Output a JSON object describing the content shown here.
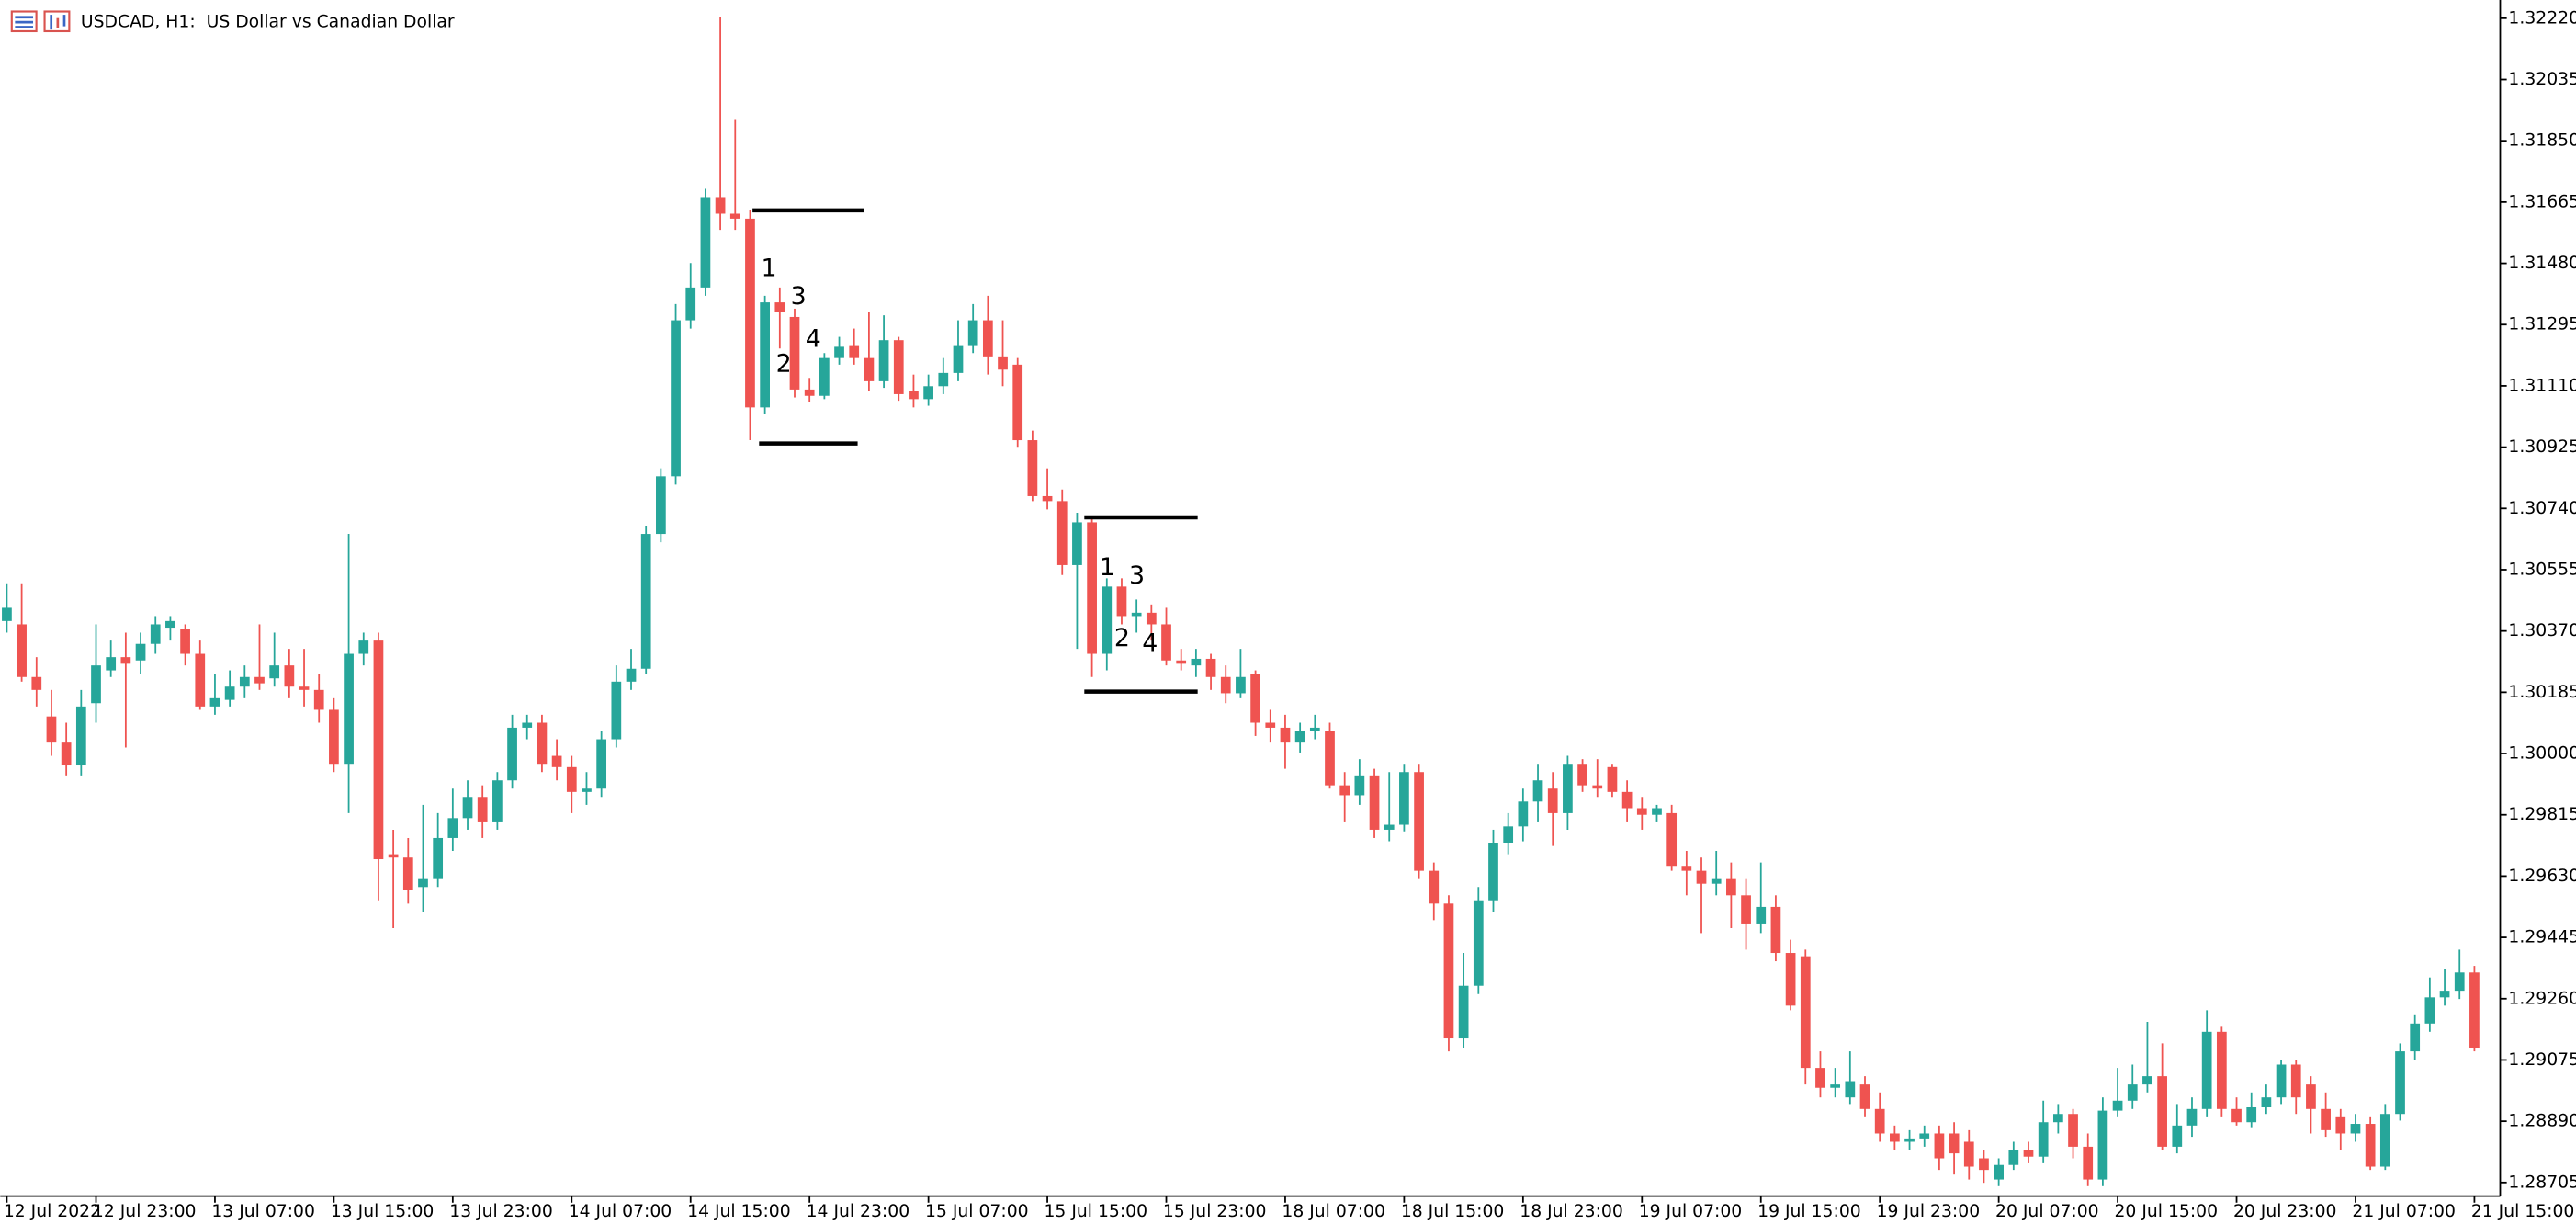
{
  "chart_data": {
    "type": "candlestick",
    "title": "USDCAD, H1:  US Dollar vs Canadian Dollar",
    "up_color": "#26a69a",
    "down_color": "#ef5350",
    "ylim": [
      1.28664,
      1.32275
    ],
    "yticks": [
      {
        "value": 1.3222,
        "label": "1.32220"
      },
      1.32035,
      {
        "value": 1.3185,
        "label": "1.31850"
      },
      1.31665,
      {
        "value": 1.3148,
        "label": "1.31480"
      },
      1.31295,
      {
        "value": 1.3111,
        "label": "1.31110"
      },
      1.30925,
      {
        "value": 1.3074,
        "label": "1.30740"
      },
      1.30555,
      {
        "value": 1.3037,
        "label": "1.30370"
      },
      1.30185,
      {
        "value": 1.3,
        "label": "1.30000"
      },
      1.29815,
      {
        "value": 1.2963,
        "label": "1.29630"
      },
      1.29445,
      {
        "value": 1.2926,
        "label": "1.29260"
      },
      1.29075,
      {
        "value": 1.2889,
        "label": "1.28890"
      },
      1.28705
    ],
    "categories": [
      "12 Jul 2022",
      null,
      null,
      null,
      null,
      null,
      "12 Jul 23:00",
      null,
      null,
      null,
      null,
      null,
      null,
      null,
      "13 Jul 07:00",
      null,
      null,
      null,
      null,
      null,
      null,
      null,
      "13 Jul 15:00",
      null,
      null,
      null,
      null,
      null,
      null,
      null,
      "13 Jul 23:00",
      null,
      null,
      null,
      null,
      null,
      null,
      null,
      "14 Jul 07:00",
      null,
      null,
      null,
      null,
      null,
      null,
      null,
      "14 Jul 15:00",
      null,
      null,
      null,
      null,
      null,
      null,
      null,
      "14 Jul 23:00",
      null,
      null,
      null,
      null,
      null,
      null,
      null,
      "15 Jul 07:00",
      null,
      null,
      null,
      null,
      null,
      null,
      null,
      "15 Jul 15:00",
      null,
      null,
      null,
      null,
      null,
      null,
      null,
      "15 Jul 23:00",
      null,
      null,
      null,
      null,
      null,
      null,
      null,
      "18 Jul 07:00",
      null,
      null,
      null,
      null,
      null,
      null,
      null,
      "18 Jul 15:00",
      null,
      null,
      null,
      null,
      null,
      null,
      null,
      "18 Jul 23:00",
      null,
      null,
      null,
      null,
      null,
      null,
      null,
      "19 Jul 07:00",
      null,
      null,
      null,
      null,
      null,
      null,
      null,
      "19 Jul 15:00",
      null,
      null,
      null,
      null,
      null,
      null,
      null,
      "19 Jul 23:00",
      null,
      null,
      null,
      null,
      null,
      null,
      null,
      "20 Jul 07:00",
      null,
      null,
      null,
      null,
      null,
      null,
      null,
      "20 Jul 15:00",
      null,
      null,
      null,
      null,
      null,
      null,
      null,
      "20 Jul 23:00",
      null,
      null,
      null,
      null,
      null,
      null,
      null,
      "21 Jul 07:00",
      null,
      null,
      null,
      null,
      null,
      null,
      null,
      "21 Jul 15:00"
    ],
    "open": [
      1.304,
      1.3039,
      1.30231,
      1.30112,
      1.30033,
      1.29964,
      1.30152,
      1.30251,
      1.30291,
      1.30281,
      1.30331,
      1.3038,
      1.30375,
      1.30301,
      1.30142,
      1.30162,
      1.30202,
      1.30231,
      1.30227,
      1.30266,
      1.30202,
      1.30192,
      1.30132,
      1.29969,
      1.30301,
      1.30341,
      1.29696,
      1.29686,
      1.29597,
      1.29621,
      1.29745,
      1.29805,
      1.29869,
      1.29795,
      1.29919,
      1.30078,
      1.30093,
      1.29993,
      1.29959,
      1.29884,
      1.29894,
      1.30043,
      1.30217,
      1.30256,
      1.30663,
      1.30837,
      1.31308,
      1.31407,
      1.3168,
      1.3163,
      1.31615,
      1.31045,
      1.31362,
      1.31318,
      1.31099,
      1.3108,
      1.31194,
      1.31233,
      1.31194,
      1.31124,
      1.31248,
      1.31095,
      1.3107,
      1.31109,
      1.31149,
      1.31233,
      1.31308,
      1.31199,
      1.31174,
      1.30946,
      1.30777,
      1.30762,
      1.30569,
      1.30698,
      1.30301,
      1.30504,
      1.30415,
      1.30425,
      1.3039,
      1.30281,
      1.30266,
      1.30286,
      1.30231,
      1.30182,
      1.30241,
      1.30093,
      1.30078,
      1.30033,
      1.30068,
      1.30068,
      1.29904,
      1.29874,
      1.29934,
      1.2977,
      1.29785,
      1.29944,
      1.29646,
      1.29547,
      1.2914,
      1.29299,
      1.29557,
      1.29731,
      1.2978,
      1.29855,
      1.29894,
      1.2982,
      1.29969,
      1.29904,
      1.29959,
      1.29884,
      1.29835,
      1.29815,
      1.2982,
      1.29661,
      1.29646,
      1.29607,
      1.29621,
      1.29572,
      1.29487,
      1.29537,
      1.29398,
      1.29388,
      1.29051,
      1.28991,
      1.28962,
      1.29001,
      1.28927,
      1.28853,
      1.28828,
      1.28838,
      1.28853,
      1.28853,
      1.28828,
      1.28778,
      1.28714,
      1.28758,
      1.28803,
      1.28783,
      1.28887,
      1.28912,
      1.28813,
      1.28714,
      1.28922,
      1.28952,
      1.29001,
      1.29026,
      1.28813,
      1.28877,
      1.28927,
      1.2916,
      1.28927,
      1.28887,
      1.28932,
      1.28962,
      1.29061,
      1.29001,
      1.28927,
      1.28902,
      1.28853,
      1.28882,
      1.28753,
      1.28912,
      1.29101,
      1.29185,
      1.29264,
      1.29284,
      1.29339
    ],
    "high": [
      1.30514,
      1.30514,
      1.30291,
      1.30192,
      1.30093,
      1.30192,
      1.3039,
      1.30341,
      1.30365,
      1.30365,
      1.30415,
      1.30415,
      1.3039,
      1.30341,
      1.30241,
      1.30251,
      1.30266,
      1.3039,
      1.30365,
      1.30316,
      1.30316,
      1.30241,
      1.30167,
      1.30663,
      1.30365,
      1.30365,
      1.2977,
      1.29745,
      1.29845,
      1.2982,
      1.29894,
      1.29919,
      1.29904,
      1.29944,
      1.30117,
      1.30117,
      1.30117,
      1.30043,
      1.29993,
      1.29944,
      1.30068,
      1.30266,
      1.30316,
      1.30688,
      1.30861,
      1.31357,
      1.31481,
      1.31705,
      1.32225,
      1.31913,
      1.3164,
      1.31382,
      1.31407,
      1.31343,
      1.31134,
      1.31209,
      1.31258,
      1.31283,
      1.31333,
      1.31323,
      1.31258,
      1.31144,
      1.31144,
      1.31194,
      1.31308,
      1.31357,
      1.31382,
      1.31308,
      1.31194,
      1.30975,
      1.30861,
      1.30797,
      1.30727,
      1.30708,
      1.30529,
      1.30529,
      1.30465,
      1.3045,
      1.3044,
      1.30316,
      1.30316,
      1.30301,
      1.30266,
      1.30316,
      1.30251,
      1.30132,
      1.30117,
      1.30093,
      1.30117,
      1.30093,
      1.29944,
      1.29983,
      1.29954,
      1.29944,
      1.29969,
      1.29969,
      1.29671,
      1.29572,
      1.29398,
      1.29597,
      1.2977,
      1.2982,
      1.29894,
      1.29969,
      1.29944,
      1.29993,
      1.29983,
      1.29983,
      1.29969,
      1.29919,
      1.29869,
      1.29845,
      1.29845,
      1.29706,
      1.29686,
      1.29706,
      1.29671,
      1.29621,
      1.29671,
      1.29572,
      1.29438,
      1.29408,
      1.29101,
      1.29051,
      1.29101,
      1.29026,
      1.28977,
      1.28877,
      1.28863,
      1.28877,
      1.28877,
      1.28887,
      1.28863,
      1.28803,
      1.28778,
      1.28828,
      1.28828,
      1.28952,
      1.28942,
      1.28927,
      1.28853,
      1.28962,
      1.29051,
      1.29061,
      1.2919,
      1.29125,
      1.28942,
      1.28962,
      1.29225,
      1.29175,
      1.28962,
      1.28977,
      1.29001,
      1.29076,
      1.29076,
      1.29026,
      1.28977,
      1.28927,
      1.28912,
      1.28902,
      1.28942,
      1.29125,
      1.2921,
      1.29324,
      1.29349,
      1.29408,
      1.29359
    ],
    "low": [
      1.30365,
      1.30217,
      1.30142,
      1.29993,
      1.29934,
      1.29934,
      1.30093,
      1.30231,
      1.30018,
      1.30241,
      1.30301,
      1.30341,
      1.30266,
      1.30132,
      1.30117,
      1.30142,
      1.30167,
      1.30192,
      1.30202,
      1.30167,
      1.30142,
      1.30093,
      1.29944,
      1.2982,
      1.30266,
      1.29557,
      1.29473,
      1.29547,
      1.29522,
      1.29597,
      1.29706,
      1.2977,
      1.29745,
      1.2977,
      1.29894,
      1.30043,
      1.29944,
      1.29919,
      1.2982,
      1.29845,
      1.29869,
      1.30018,
      1.30192,
      1.30241,
      1.30638,
      1.30812,
      1.31283,
      1.31382,
      1.31581,
      1.31581,
      1.30946,
      1.31025,
      1.31223,
      1.31075,
      1.3106,
      1.3107,
      1.31174,
      1.31174,
      1.31095,
      1.31104,
      1.31065,
      1.31045,
      1.3105,
      1.31085,
      1.31124,
      1.31209,
      1.31144,
      1.31109,
      1.30926,
      1.30762,
      1.30737,
      1.30539,
      1.30316,
      1.30231,
      1.30251,
      1.3039,
      1.30365,
      1.30341,
      1.30266,
      1.30251,
      1.30231,
      1.30192,
      1.30152,
      1.30167,
      1.30053,
      1.30033,
      1.29954,
      1.30003,
      1.30043,
      1.29894,
      1.29795,
      1.29845,
      1.29745,
      1.29735,
      1.29765,
      1.29621,
      1.29497,
      1.29101,
      1.29111,
      1.29274,
      1.29522,
      1.29696,
      1.29735,
      1.29795,
      1.29721,
      1.2977,
      1.29884,
      1.29869,
      1.29869,
      1.29795,
      1.2977,
      1.29795,
      1.29646,
      1.29572,
      1.29458,
      1.29572,
      1.29473,
      1.29408,
      1.29458,
      1.29373,
      1.29225,
      1.29001,
      1.28962,
      1.28962,
      1.28942,
      1.28902,
      1.28828,
      1.28803,
      1.28803,
      1.28813,
      1.28743,
      1.28729,
      1.28714,
      1.28704,
      1.28694,
      1.28743,
      1.28763,
      1.28763,
      1.28853,
      1.28778,
      1.28694,
      1.28694,
      1.28902,
      1.28927,
      1.28977,
      1.28803,
      1.28793,
      1.28843,
      1.28902,
      1.28902,
      1.28877,
      1.28872,
      1.28912,
      1.28942,
      1.28912,
      1.28853,
      1.28843,
      1.28803,
      1.28828,
      1.28743,
      1.28743,
      1.28892,
      1.29076,
      1.2916,
      1.29239,
      1.29259,
      1.29101
    ],
    "close": [
      1.3044,
      1.30231,
      1.30192,
      1.30033,
      1.29964,
      1.30142,
      1.30266,
      1.30291,
      1.30271,
      1.30331,
      1.3039,
      1.304,
      1.30301,
      1.30142,
      1.30167,
      1.30202,
      1.30231,
      1.30212,
      1.30266,
      1.30202,
      1.30192,
      1.30132,
      1.29969,
      1.30301,
      1.30341,
      1.29681,
      1.29686,
      1.29587,
      1.29621,
      1.29745,
      1.29805,
      1.29869,
      1.29795,
      1.29919,
      1.30078,
      1.30093,
      1.29969,
      1.29959,
      1.29884,
      1.29894,
      1.30043,
      1.30217,
      1.30256,
      1.30663,
      1.30837,
      1.31308,
      1.31407,
      1.3168,
      1.3163,
      1.31615,
      1.31045,
      1.31362,
      1.31333,
      1.31099,
      1.3108,
      1.31194,
      1.31228,
      1.31194,
      1.31124,
      1.31248,
      1.31085,
      1.3107,
      1.31109,
      1.31149,
      1.31233,
      1.31308,
      1.31199,
      1.31159,
      1.30946,
      1.30777,
      1.30762,
      1.30569,
      1.30698,
      1.30301,
      1.30504,
      1.30415,
      1.30425,
      1.3039,
      1.30281,
      1.30271,
      1.30286,
      1.30231,
      1.30182,
      1.30231,
      1.30093,
      1.30078,
      1.30033,
      1.30068,
      1.30078,
      1.29904,
      1.29874,
      1.29934,
      1.2977,
      1.29785,
      1.29944,
      1.29646,
      1.29547,
      1.2914,
      1.29299,
      1.29557,
      1.29731,
      1.2978,
      1.29855,
      1.29919,
      1.2982,
      1.29969,
      1.29904,
      1.29894,
      1.29884,
      1.29835,
      1.29815,
      1.29835,
      1.29661,
      1.29646,
      1.29607,
      1.29621,
      1.29572,
      1.29487,
      1.29537,
      1.29398,
      1.29239,
      1.29051,
      1.28991,
      1.29001,
      1.29011,
      1.28927,
      1.28853,
      1.28828,
      1.28838,
      1.28853,
      1.28778,
      1.28793,
      1.28753,
      1.28743,
      1.28758,
      1.28803,
      1.28783,
      1.28887,
      1.28912,
      1.28813,
      1.28714,
      1.28922,
      1.28952,
      1.29001,
      1.29026,
      1.28813,
      1.28877,
      1.28927,
      1.2916,
      1.28927,
      1.28887,
      1.28932,
      1.28962,
      1.29061,
      1.28962,
      1.28927,
      1.28863,
      1.28853,
      1.28882,
      1.28753,
      1.28912,
      1.29101,
      1.29185,
      1.29264,
      1.29284,
      1.29339,
      1.29111
    ],
    "levels": [
      1.3164,
      1.30936,
      1.30713,
      1.30187
    ],
    "annotations": [
      "1",
      "3",
      "2",
      "4",
      "1",
      "3",
      "2",
      "4"
    ]
  }
}
